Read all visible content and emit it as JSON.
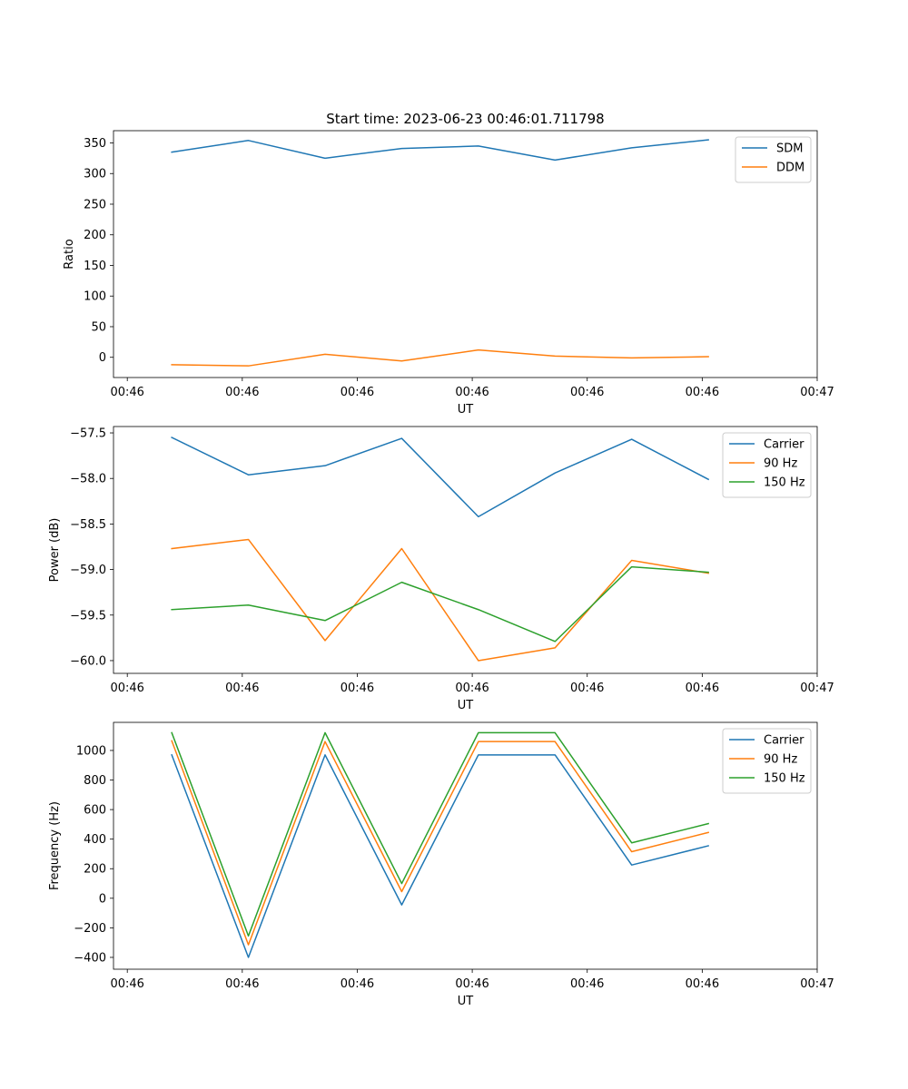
{
  "figure_title": "Start time: 2023-06-23 00:46:01.711798",
  "chart_data": [
    {
      "type": "line",
      "ylabel": "Ratio",
      "xlabel": "UT",
      "x": [
        1,
        2,
        3,
        4,
        5,
        6,
        7,
        8
      ],
      "xlim": [
        0.24,
        9.42
      ],
      "x_ticks": [
        0.42,
        1.92,
        3.42,
        4.92,
        6.42,
        7.92,
        9.42
      ],
      "x_tick_labels": [
        "00:46",
        "00:46",
        "00:46",
        "00:46",
        "00:46",
        "00:46",
        "00:47"
      ],
      "ylim": [
        -33,
        370
      ],
      "y_ticks": [
        0,
        50,
        100,
        150,
        200,
        250,
        300,
        350
      ],
      "legend_position": "top-right",
      "series": [
        {
          "name": "SDM",
          "color": "#1f77b4",
          "values": [
            335,
            354,
            325,
            341,
            345,
            322,
            342,
            355
          ]
        },
        {
          "name": "DDM",
          "color": "#ff7f0e",
          "values": [
            -12,
            -14,
            5,
            -6,
            12,
            2,
            -1,
            1
          ]
        }
      ]
    },
    {
      "type": "line",
      "ylabel": "Power (dB)",
      "xlabel": "UT",
      "x": [
        1,
        2,
        3,
        4,
        5,
        6,
        7,
        8
      ],
      "xlim": [
        0.24,
        9.42
      ],
      "x_ticks": [
        0.42,
        1.92,
        3.42,
        4.92,
        6.42,
        7.92,
        9.42
      ],
      "x_tick_labels": [
        "00:46",
        "00:46",
        "00:46",
        "00:46",
        "00:46",
        "00:46",
        "00:47"
      ],
      "ylim": [
        -60.14,
        -57.43
      ],
      "y_ticks": [
        -60.0,
        -59.5,
        -59.0,
        -58.5,
        -58.0,
        -57.5
      ],
      "y_tick_labels": [
        "−60.0",
        "−59.5",
        "−59.0",
        "−58.5",
        "−58.0",
        "−57.5"
      ],
      "legend_position": "top-right",
      "series": [
        {
          "name": "Carrier",
          "color": "#1f77b4",
          "values": [
            -57.55,
            -57.96,
            -57.86,
            -57.56,
            -58.42,
            -57.94,
            -57.57,
            -58.01
          ]
        },
        {
          "name": "90 Hz",
          "color": "#ff7f0e",
          "values": [
            -58.77,
            -58.67,
            -59.78,
            -58.77,
            -60.0,
            -59.86,
            -58.9,
            -59.04
          ]
        },
        {
          "name": "150 Hz",
          "color": "#2ca02c",
          "values": [
            -59.44,
            -59.39,
            -59.56,
            -59.14,
            -59.44,
            -59.79,
            -58.97,
            -59.03
          ]
        }
      ]
    },
    {
      "type": "line",
      "ylabel": "Frequency (Hz)",
      "xlabel": "UT",
      "x": [
        1,
        2,
        3,
        4,
        5,
        6,
        7,
        8
      ],
      "xlim": [
        0.24,
        9.42
      ],
      "x_ticks": [
        0.42,
        1.92,
        3.42,
        4.92,
        6.42,
        7.92,
        9.42
      ],
      "x_tick_labels": [
        "00:46",
        "00:46",
        "00:46",
        "00:46",
        "00:46",
        "00:46",
        "00:47"
      ],
      "ylim": [
        -480,
        1190
      ],
      "y_ticks": [
        -400,
        -200,
        0,
        200,
        400,
        600,
        800,
        1000
      ],
      "y_tick_labels": [
        "−400",
        "−200",
        "0",
        "200",
        "400",
        "600",
        "800",
        "1000"
      ],
      "legend_position": "top-right",
      "series": [
        {
          "name": "Carrier",
          "color": "#1f77b4",
          "values": [
            970,
            -400,
            970,
            -45,
            970,
            970,
            225,
            355
          ]
        },
        {
          "name": "90 Hz",
          "color": "#ff7f0e",
          "values": [
            1065,
            -315,
            1060,
            45,
            1060,
            1060,
            315,
            445
          ]
        },
        {
          "name": "150 Hz",
          "color": "#2ca02c",
          "values": [
            1120,
            -255,
            1120,
            100,
            1120,
            1120,
            375,
            505
          ]
        }
      ]
    }
  ]
}
